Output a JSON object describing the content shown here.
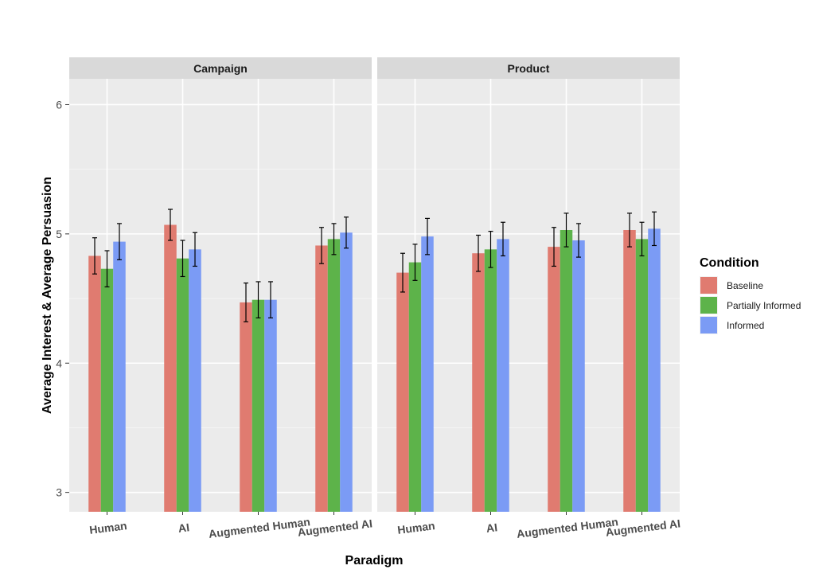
{
  "chart_data": {
    "type": "bar",
    "facets": [
      "Campaign",
      "Product"
    ],
    "categories": [
      "Human",
      "AI",
      "Augmented Human",
      "Augmented AI"
    ],
    "xlabel": "Paradigm",
    "ylabel": "Average Interest & Average Persuasion",
    "ylim": [
      2.85,
      6.2
    ],
    "yticks": [
      3,
      4,
      5,
      6
    ],
    "grid": true,
    "legend": {
      "title": "Condition",
      "position": "right",
      "entries": [
        "Baseline",
        "Partially Informed",
        "Informed"
      ]
    },
    "series": [
      {
        "name": "Baseline",
        "color": "#E07B70",
        "values": {
          "Campaign": [
            4.83,
            5.07,
            4.47,
            4.91
          ],
          "Product": [
            4.7,
            4.85,
            4.9,
            5.03
          ]
        },
        "errors": {
          "Campaign": [
            0.14,
            0.12,
            0.15,
            0.14
          ],
          "Product": [
            0.15,
            0.14,
            0.15,
            0.13
          ]
        }
      },
      {
        "name": "Partially Informed",
        "color": "#5DB34A",
        "values": {
          "Campaign": [
            4.73,
            4.81,
            4.49,
            4.96
          ],
          "Product": [
            4.78,
            4.88,
            5.03,
            4.96
          ]
        },
        "errors": {
          "Campaign": [
            0.14,
            0.14,
            0.14,
            0.12
          ],
          "Product": [
            0.14,
            0.14,
            0.13,
            0.13
          ]
        }
      },
      {
        "name": "Informed",
        "color": "#7B9BF5",
        "values": {
          "Campaign": [
            4.94,
            4.88,
            4.49,
            5.01
          ],
          "Product": [
            4.98,
            4.96,
            4.95,
            5.04
          ]
        },
        "errors": {
          "Campaign": [
            0.14,
            0.13,
            0.14,
            0.12
          ],
          "Product": [
            0.14,
            0.13,
            0.13,
            0.13
          ]
        }
      }
    ]
  }
}
